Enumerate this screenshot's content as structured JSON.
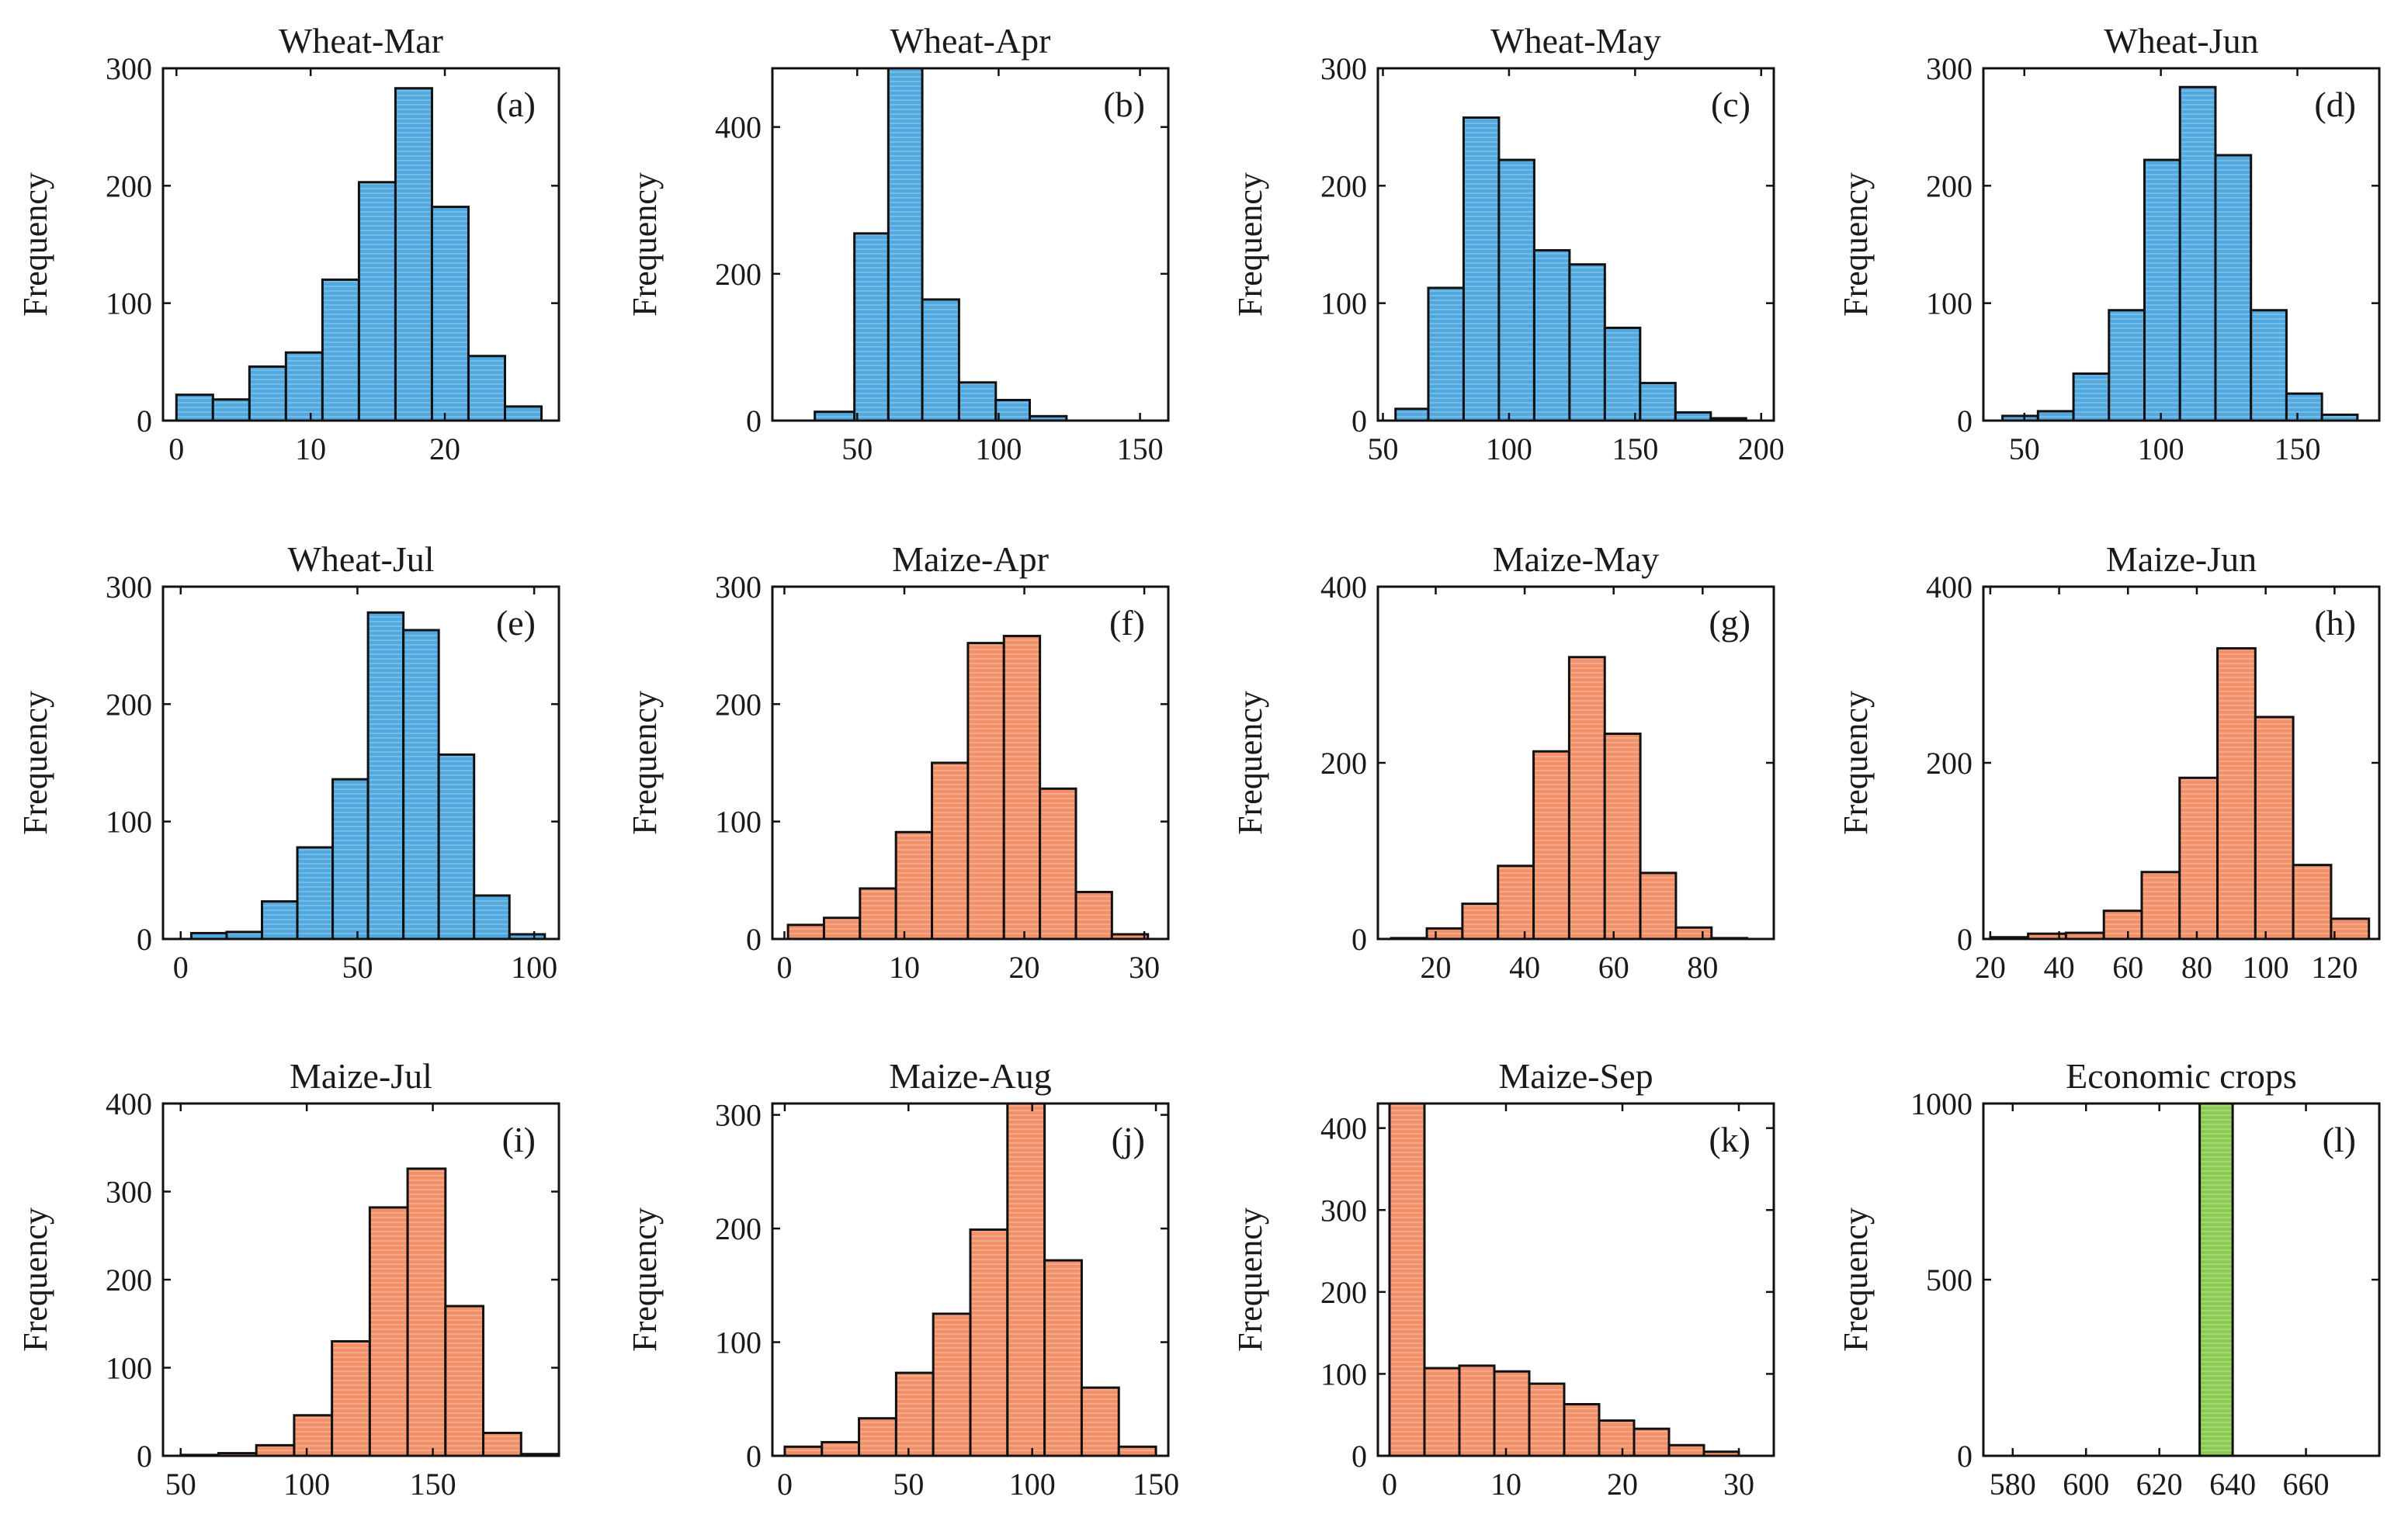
{
  "colors": {
    "wheat": "#52a9e0",
    "maize": "#f2906a",
    "economic": "#8ccc52",
    "edge": "#111111"
  },
  "chart_data": [
    {
      "type": "bar",
      "title": "Wheat-Mar",
      "panel": "(a)",
      "color": "wheat",
      "ylabel": "Frequency",
      "edges": [
        0,
        2.72,
        5.44,
        8.16,
        10.88,
        13.6,
        16.32,
        19.04,
        21.76,
        24.48,
        27.2
      ],
      "values": [
        22,
        18,
        46,
        58,
        120,
        203,
        283,
        182,
        55,
        12
      ],
      "xlim": [
        -1,
        28.5
      ],
      "ylim": [
        0,
        300
      ],
      "xticks": [
        0,
        10,
        20
      ],
      "yticks": [
        0,
        100,
        200,
        300
      ]
    },
    {
      "type": "bar",
      "title": "Wheat-Apr",
      "panel": "(b)",
      "color": "wheat",
      "ylabel": "Frequency",
      "edges": [
        35,
        49,
        61,
        73,
        86,
        99,
        111,
        124
      ],
      "values": [
        12,
        255,
        480,
        165,
        52,
        28,
        6
      ],
      "xlim": [
        20,
        160
      ],
      "ylim": [
        0,
        480
      ],
      "xticks": [
        50,
        100,
        150
      ],
      "yticks": [
        0,
        200,
        400
      ]
    },
    {
      "type": "bar",
      "title": "Wheat-May",
      "panel": "(c)",
      "color": "wheat",
      "ylabel": "Frequency",
      "edges": [
        55,
        68,
        82,
        96,
        110,
        124,
        138,
        152,
        166,
        180,
        194
      ],
      "values": [
        10,
        113,
        258,
        222,
        145,
        133,
        79,
        32,
        7,
        2
      ],
      "xlim": [
        48,
        205
      ],
      "ylim": [
        0,
        300
      ],
      "xticks": [
        50,
        100,
        150,
        200
      ],
      "yticks": [
        0,
        100,
        200,
        300
      ]
    },
    {
      "type": "bar",
      "title": "Wheat-Jun",
      "panel": "(d)",
      "color": "wheat",
      "ylabel": "Frequency",
      "edges": [
        42,
        55,
        68,
        81,
        94,
        107,
        120,
        133,
        146,
        159,
        172
      ],
      "values": [
        4,
        8,
        40,
        94,
        222,
        284,
        226,
        94,
        23,
        5
      ],
      "xlim": [
        35,
        180
      ],
      "ylim": [
        0,
        300
      ],
      "xticks": [
        50,
        100,
        150
      ],
      "yticks": [
        0,
        100,
        200,
        300
      ]
    },
    {
      "type": "bar",
      "title": "Wheat-Jul",
      "panel": "(e)",
      "color": "wheat",
      "ylabel": "Frequency",
      "edges": [
        3,
        13,
        23,
        33,
        43,
        53,
        63,
        73,
        83,
        93,
        103
      ],
      "values": [
        5,
        6,
        32,
        78,
        136,
        278,
        263,
        157,
        37,
        4
      ],
      "xlim": [
        -5,
        107
      ],
      "ylim": [
        0,
        300
      ],
      "xticks": [
        0,
        50,
        100
      ],
      "yticks": [
        0,
        100,
        200,
        300
      ]
    },
    {
      "type": "bar",
      "title": "Maize-Apr",
      "panel": "(f)",
      "color": "maize",
      "ylabel": "Frequency",
      "edges": [
        0.3,
        3.3,
        6.3,
        9.3,
        12.3,
        15.3,
        18.3,
        21.3,
        24.3,
        27.3,
        30.3
      ],
      "values": [
        12,
        18,
        43,
        91,
        150,
        252,
        258,
        128,
        40,
        4
      ],
      "xlim": [
        -1,
        32
      ],
      "ylim": [
        0,
        300
      ],
      "xticks": [
        0,
        10,
        20,
        30
      ],
      "yticks": [
        0,
        100,
        200,
        300
      ]
    },
    {
      "type": "bar",
      "title": "Maize-May",
      "panel": "(g)",
      "color": "maize",
      "ylabel": "Frequency",
      "edges": [
        10,
        18,
        26,
        34,
        42,
        50,
        58,
        66,
        74,
        82,
        90
      ],
      "values": [
        1,
        12,
        40,
        83,
        213,
        320,
        233,
        75,
        13,
        1
      ],
      "xlim": [
        7,
        96
      ],
      "ylim": [
        0,
        400
      ],
      "xticks": [
        20,
        40,
        60,
        80
      ],
      "yticks": [
        0,
        200,
        400
      ]
    },
    {
      "type": "bar",
      "title": "Maize-Jun",
      "panel": "(h)",
      "color": "maize",
      "ylabel": "Frequency",
      "edges": [
        20,
        31,
        42,
        53,
        64,
        75,
        86,
        97,
        108,
        119,
        130
      ],
      "values": [
        2,
        6,
        7,
        32,
        76,
        183,
        330,
        252,
        84,
        23
      ],
      "xlim": [
        18,
        133
      ],
      "ylim": [
        0,
        400
      ],
      "xticks": [
        20,
        40,
        60,
        80,
        100,
        120
      ],
      "yticks": [
        0,
        200,
        400
      ]
    },
    {
      "type": "bar",
      "title": "Maize-Jul",
      "panel": "(i)",
      "color": "maize",
      "ylabel": "Frequency",
      "edges": [
        50,
        65,
        80,
        95,
        110,
        125,
        140,
        155,
        170,
        185,
        200
      ],
      "values": [
        1,
        3,
        12,
        46,
        130,
        282,
        326,
        170,
        26,
        2
      ],
      "xlim": [
        43,
        200
      ],
      "ylim": [
        0,
        400
      ],
      "xticks": [
        50,
        100,
        150
      ],
      "yticks": [
        0,
        100,
        200,
        300,
        400
      ]
    },
    {
      "type": "bar",
      "title": "Maize-Aug",
      "panel": "(j)",
      "color": "maize",
      "ylabel": "Frequency",
      "edges": [
        0,
        15,
        30,
        45,
        60,
        75,
        90,
        105,
        120,
        135,
        150
      ],
      "values": [
        8,
        12,
        33,
        73,
        125,
        199,
        310,
        172,
        60,
        8
      ],
      "xlim": [
        -5,
        155
      ],
      "ylim": [
        0,
        310
      ],
      "xticks": [
        0,
        50,
        100,
        150
      ],
      "yticks": [
        0,
        100,
        200,
        300
      ]
    },
    {
      "type": "bar",
      "title": "Maize-Sep",
      "panel": "(k)",
      "color": "maize",
      "ylabel": "Frequency",
      "edges": [
        0,
        3,
        6,
        9,
        12,
        15,
        18,
        21,
        24,
        27,
        30,
        33
      ],
      "values": [
        430,
        107,
        110,
        103,
        88,
        63,
        43,
        33,
        13,
        5,
        0
      ],
      "xlim": [
        -1,
        33
      ],
      "ylim": [
        0,
        430
      ],
      "xticks": [
        0,
        10,
        20,
        30
      ],
      "yticks": [
        0,
        100,
        200,
        300,
        400
      ]
    },
    {
      "type": "bar",
      "title": "Economic crops",
      "panel": "(l)",
      "color": "economic",
      "ylabel": "Frequency",
      "edges": [
        631,
        640
      ],
      "values": [
        1000
      ],
      "xlim": [
        572,
        680
      ],
      "ylim": [
        0,
        1000
      ],
      "xticks": [
        580,
        600,
        620,
        640,
        660
      ],
      "yticks": [
        0,
        500,
        1000
      ]
    }
  ]
}
